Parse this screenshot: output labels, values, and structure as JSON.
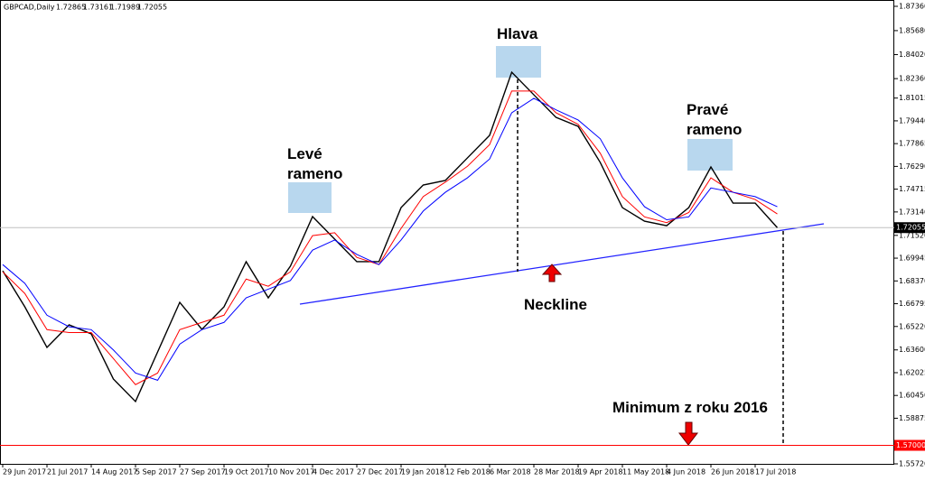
{
  "chart_data": {
    "type": "line",
    "title": "GBPCAD,Daily",
    "ohlc": [
      1.72865,
      1.73161,
      1.71989,
      1.72055
    ],
    "categories": [
      "29 Jun 2017",
      null,
      "21 Jul 2017",
      null,
      "14 Aug 2017",
      null,
      "5 Sep 2017",
      null,
      "27 Sep 2017",
      null,
      "19 Oct 2017",
      null,
      "10 Nov 2017",
      null,
      "4 Dec 2017",
      null,
      "27 Dec 2017",
      null,
      "19 Jan 2018",
      null,
      "12 Feb 2018",
      null,
      "6 Mar 2018",
      null,
      "28 Mar 2018",
      null,
      "19 Apr 2018",
      null,
      "11 May 2018",
      null,
      "4 Jun 2018",
      null,
      "26 Jun 2018",
      null,
      "17 Jul 2018",
      null
    ],
    "series": [
      {
        "color": "#000000",
        "values": [
          1.6907,
          1.6658,
          1.6377,
          1.6533,
          1.6471,
          1.6159,
          1.6003,
          1.6346,
          1.6689,
          1.6502,
          1.6658,
          1.697,
          1.672,
          1.6939,
          1.7282,
          1.7126,
          1.697,
          1.697,
          1.7344,
          1.75,
          1.7532,
          1.7688,
          1.7844,
          1.828,
          1.8124,
          1.7968,
          1.7906,
          1.7656,
          1.7344,
          1.725,
          1.7219,
          1.7344,
          1.7625,
          1.7375,
          1.7375,
          1.72055
        ]
      },
      {
        "color": "#ff0000",
        "values": [
          1.69,
          1.675,
          1.65,
          1.648,
          1.648,
          1.63,
          1.612,
          1.62,
          1.65,
          1.655,
          1.66,
          1.685,
          1.68,
          1.69,
          1.715,
          1.717,
          1.7,
          1.695,
          1.72,
          1.742,
          1.752,
          1.763,
          1.778,
          1.815,
          1.815,
          1.8,
          1.792,
          1.772,
          1.742,
          1.728,
          1.724,
          1.731,
          1.755,
          1.745,
          1.74,
          1.73
        ]
      },
      {
        "color": "#0000ff",
        "values": [
          1.695,
          1.682,
          1.66,
          1.652,
          1.65,
          1.636,
          1.62,
          1.615,
          1.64,
          1.65,
          1.655,
          1.672,
          1.678,
          1.684,
          1.705,
          1.712,
          1.702,
          1.695,
          1.712,
          1.732,
          1.745,
          1.755,
          1.768,
          1.8,
          1.81,
          1.802,
          1.795,
          1.782,
          1.755,
          1.735,
          1.726,
          1.728,
          1.748,
          1.745,
          1.742,
          1.735
        ]
      }
    ],
    "ylim": [
      1.5572,
      1.8736
    ],
    "yticks": [
      {
        "value": 1.8736,
        "label": "1.87360"
      },
      {
        "value": 1.8568,
        "label": "1.85680"
      },
      {
        "value": 1.8402,
        "label": "1.84020"
      },
      {
        "value": 1.8236,
        "label": "1.82360"
      },
      1.81015,
      {
        "value": 1.7944,
        "label": "1.79440"
      },
      1.77865,
      {
        "value": 1.7629,
        "label": "1.76290"
      },
      1.74715,
      {
        "value": 1.7314,
        "label": "1.73140"
      },
      {
        "value": 1.7152,
        "label": "1.71520"
      },
      1.69945,
      {
        "value": 1.6837,
        "label": "1.68370"
      },
      1.66795,
      {
        "value": 1.6522,
        "label": "1.65220"
      },
      {
        "value": 1.636,
        "label": "1.63600"
      },
      1.62025,
      {
        "value": 1.6045,
        "label": "1.60450"
      },
      1.58875,
      {
        "value": 1.5572,
        "label": "1.55720"
      }
    ],
    "current_price": {
      "value": 1.72055,
      "label": "1.72055"
    },
    "support_line": {
      "value": 1.57,
      "label": "1.57000",
      "color": "#ff0000"
    },
    "annotations": {
      "left_shoulder": "Levé rameno",
      "head": "Hlava",
      "right_shoulder": "Pravé rameno",
      "neckline": "Neckline",
      "minimum": "Minimum z roku 2016"
    }
  }
}
